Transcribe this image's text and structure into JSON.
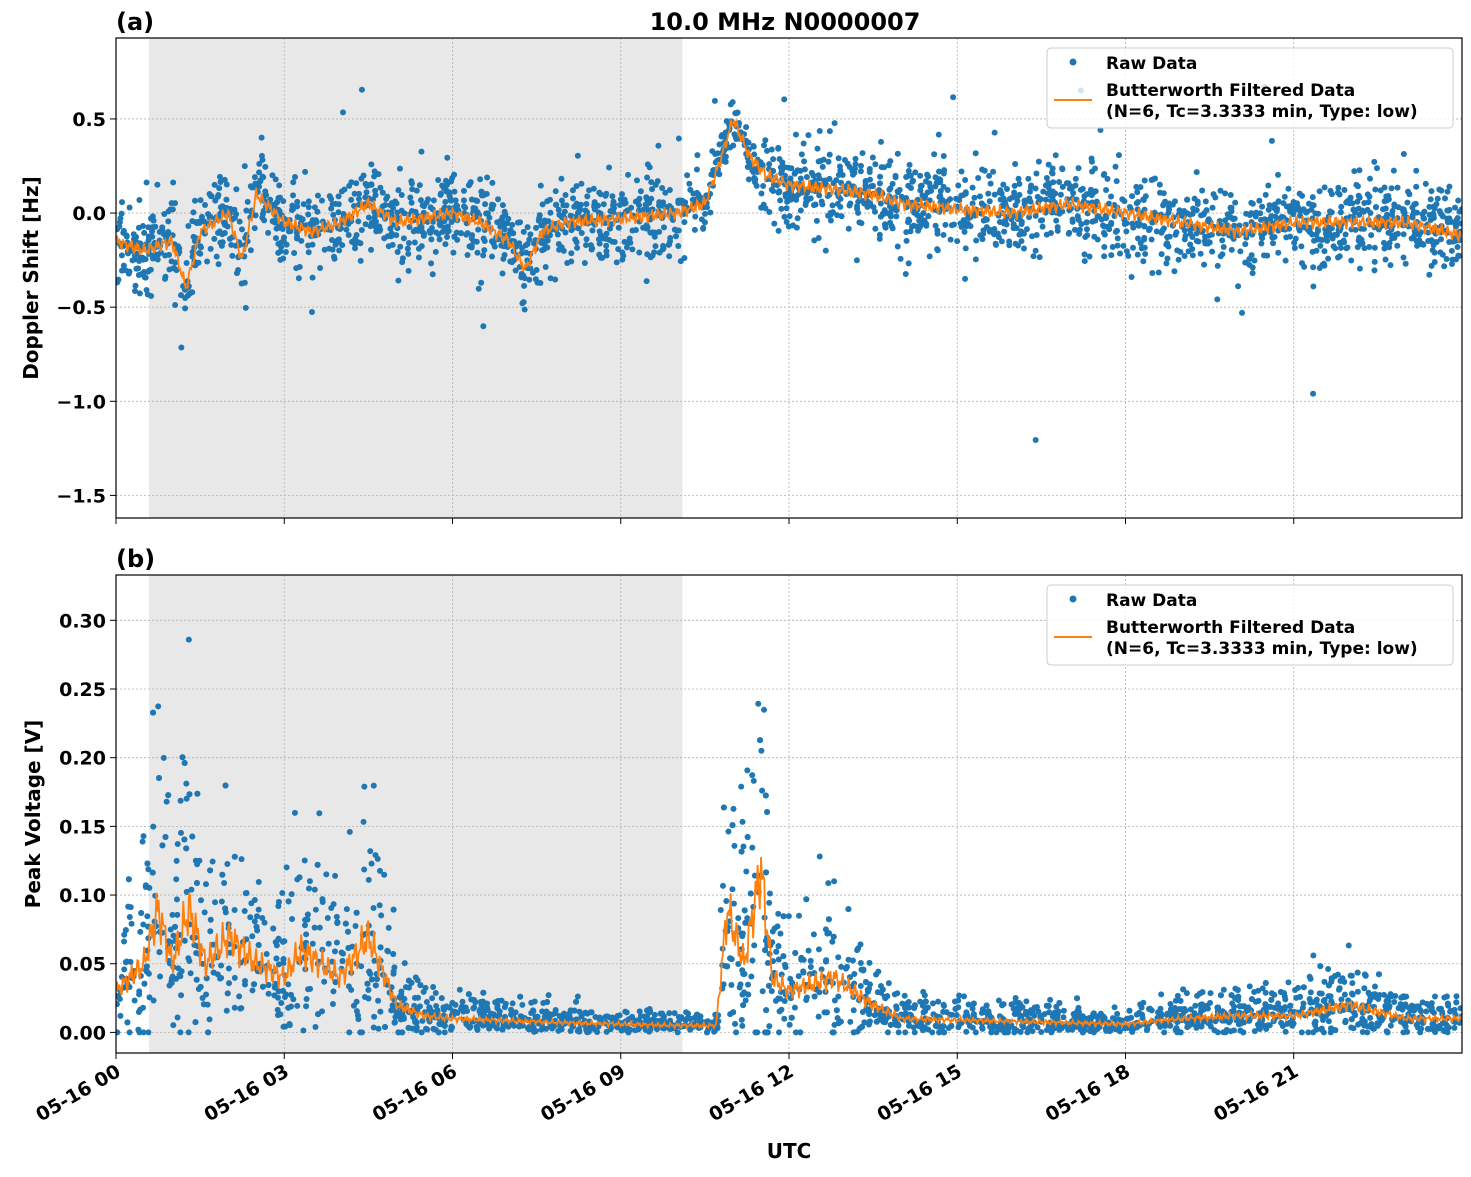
{
  "title": "10.0 MHz N0000007",
  "colors": {
    "raw": "#1f77b4",
    "filtered": "#ff7f0e",
    "shade": "#e8e8e8",
    "grid": "#b0b0b0"
  },
  "chart_data": [
    {
      "type": "scatter",
      "panel_label": "(a)",
      "ylabel": "Doppler Shift [Hz]",
      "xlabel": "",
      "xlim": [
        0,
        24
      ],
      "ylim": [
        -1.62,
        0.93
      ],
      "grid": true,
      "shaded_interval_hours": [
        0.59,
        10.1
      ],
      "xticks": [
        0,
        3,
        6,
        9,
        12,
        15,
        18,
        21
      ],
      "yticks": [
        0.5,
        0.0,
        -0.5,
        -1.0,
        -1.5
      ],
      "ytick_labels": [
        "0.5",
        "0.0",
        "−0.5",
        "−1.0",
        "−1.5"
      ],
      "legend": {
        "placement": "top-right",
        "entries": [
          "Raw Data",
          "Butterworth Filtered Data",
          "(N=6, Tc=3.3333 min, Type: low)"
        ]
      },
      "series": [
        {
          "name": "Butterworth Filtered Data",
          "kind": "line",
          "x": [
            0,
            0.5,
            1,
            1.25,
            1.5,
            2,
            2.25,
            2.5,
            3,
            3.5,
            4,
            4.5,
            5,
            6,
            6.5,
            7,
            7.3,
            7.6,
            8,
            9,
            10,
            10.5,
            10.8,
            11,
            11.3,
            11.6,
            12,
            13,
            13.5,
            14,
            15,
            16,
            17,
            18,
            19,
            20,
            21,
            22,
            23,
            24
          ],
          "y": [
            -0.15,
            -0.2,
            -0.15,
            -0.4,
            -0.1,
            0.0,
            -0.25,
            0.1,
            -0.05,
            -0.1,
            -0.05,
            0.05,
            -0.05,
            0.0,
            -0.05,
            -0.15,
            -0.3,
            -0.1,
            -0.05,
            -0.03,
            0.0,
            0.05,
            0.3,
            0.5,
            0.3,
            0.2,
            0.15,
            0.12,
            0.1,
            0.05,
            0.02,
            0.0,
            0.05,
            0.0,
            -0.05,
            -0.1,
            -0.05,
            -0.05,
            -0.05,
            -0.12
          ]
        },
        {
          "name": "Raw Data",
          "kind": "scatter",
          "spread_about_filtered": 0.22,
          "max": 0.81,
          "min": -1.51
        }
      ]
    },
    {
      "type": "scatter",
      "panel_label": "(b)",
      "ylabel": "Peak Voltage [V]",
      "xlabel": "UTC",
      "xlim": [
        0,
        24
      ],
      "ylim": [
        -0.015,
        0.333
      ],
      "grid": true,
      "shaded_interval_hours": [
        0.59,
        10.1
      ],
      "xticks": [
        0,
        3,
        6,
        9,
        12,
        15,
        18,
        21
      ],
      "xtick_labels": [
        "05-16 00",
        "05-16 03",
        "05-16 06",
        "05-16 09",
        "05-16 12",
        "05-16 15",
        "05-16 18",
        "05-16 21"
      ],
      "yticks": [
        0.3,
        0.25,
        0.2,
        0.15,
        0.1,
        0.05,
        0.0
      ],
      "ytick_labels": [
        "0.30",
        "0.25",
        "0.20",
        "0.15",
        "0.10",
        "0.05",
        "0.00"
      ],
      "legend": {
        "placement": "top-right",
        "entries": [
          "Raw Data",
          "Butterworth Filtered Data",
          "(N=6, Tc=3.3333 min, Type: low)"
        ]
      },
      "series": [
        {
          "name": "Butterworth Filtered Data",
          "kind": "line",
          "x": [
            0,
            0.5,
            0.75,
            1,
            1.3,
            1.6,
            2,
            2.5,
            3,
            3.3,
            4,
            4.5,
            5,
            5.5,
            6,
            8,
            10,
            10.7,
            10.9,
            11.2,
            11.5,
            11.7,
            12,
            12.8,
            13.5,
            14,
            16,
            18,
            19,
            20,
            21,
            22,
            23,
            24
          ],
          "y": [
            0.03,
            0.05,
            0.09,
            0.05,
            0.09,
            0.05,
            0.07,
            0.05,
            0.04,
            0.06,
            0.04,
            0.07,
            0.02,
            0.012,
            0.01,
            0.007,
            0.005,
            0.005,
            0.09,
            0.05,
            0.12,
            0.04,
            0.03,
            0.04,
            0.02,
            0.01,
            0.008,
            0.006,
            0.01,
            0.012,
            0.012,
            0.02,
            0.01,
            0.01
          ]
        },
        {
          "name": "Raw Data",
          "kind": "scatter",
          "spread_ratio": 0.9,
          "max": 0.317,
          "min": 0.0
        }
      ]
    }
  ]
}
